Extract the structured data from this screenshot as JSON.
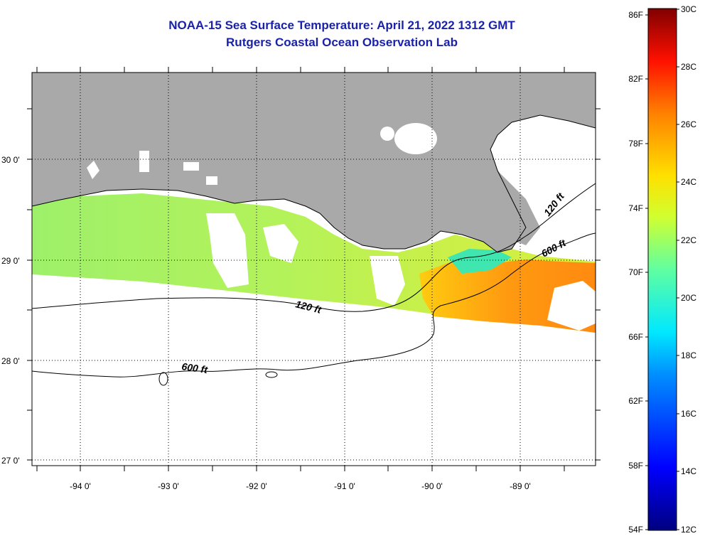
{
  "header": {
    "title": "NOAA-15 Sea Surface Temperature:  April 21, 2022 1312 GMT",
    "subtitle": "Rutgers Coastal Ocean Observation Lab"
  },
  "map": {
    "x_ticks": [
      "-94 0'",
      "-93 0'",
      "-92 0'",
      "-91 0'",
      "-90 0'",
      "-89 0'"
    ],
    "y_ticks": [
      "30 0'",
      "29 0'",
      "28 0'",
      "27 0'"
    ],
    "isobaths": [
      "120 ft",
      "600 ft",
      "120 ft",
      "600 ft"
    ],
    "colors": {
      "land": "#a9a9a9",
      "cloud": "#ffffff",
      "title": "#1a22a8"
    }
  },
  "colorbar": {
    "fahrenheit": [
      "86F",
      "82F",
      "78F",
      "74F",
      "70F",
      "66F",
      "62F",
      "58F",
      "54F"
    ],
    "celsius": [
      "30C",
      "28C",
      "26C",
      "24C",
      "22C",
      "20C",
      "18C",
      "16C",
      "14C",
      "12C"
    ]
  }
}
